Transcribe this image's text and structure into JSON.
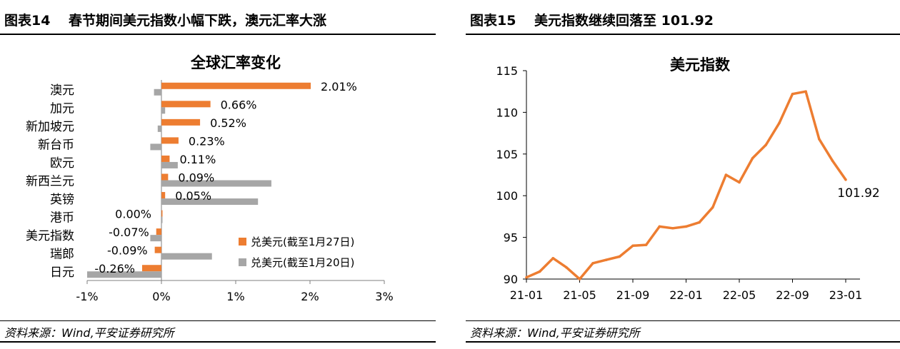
{
  "colors": {
    "orange": "#ED7D31",
    "gray": "#A6A6A6",
    "axis": "#7f7f7f"
  },
  "left": {
    "fig_title": "图表14　 春节期间美元指数小幅下跌，澳元汇率大涨",
    "source": "资料来源：Wind,平安证券研究所"
  },
  "right": {
    "fig_title": "图表15　 美元指数继续回落至 101.92",
    "source": "资料来源：Wind,平安证券研究所"
  },
  "chart_data": [
    {
      "type": "bar",
      "orientation": "horizontal",
      "title": "全球汇率变化",
      "categories": [
        "澳元",
        "加元",
        "新加坡元",
        "新台币",
        "欧元",
        "新西兰元",
        "英镑",
        "港币",
        "美元指数",
        "瑞郎",
        "日元"
      ],
      "series": [
        {
          "name": "兑美元(截至1月27日)",
          "values": [
            2.01,
            0.66,
            0.52,
            0.23,
            0.11,
            0.09,
            0.05,
            0.0,
            -0.07,
            -0.09,
            -0.26
          ]
        },
        {
          "name": "兑美元(截至1月20日)",
          "values": [
            -0.1,
            0.05,
            -0.05,
            -0.15,
            0.22,
            1.48,
            1.3,
            0,
            -0.15,
            0.68,
            -1.0
          ]
        }
      ],
      "data_labels": [
        "2.01%",
        "0.66%",
        "0.52%",
        "0.23%",
        "0.11%",
        "0.09%",
        "0.05%",
        "0.00%",
        "-0.07%",
        "-0.09%",
        "-0.26%"
      ],
      "xlim": [
        -1,
        3
      ],
      "xticks": [
        -1,
        0,
        1,
        2,
        3
      ],
      "xtick_labels": [
        "-1%",
        "0%",
        "1%",
        "2%",
        "3%"
      ],
      "legend": "bottom-right",
      "grid": false
    },
    {
      "type": "line",
      "title": "美元指数",
      "series": [
        {
          "name": "",
          "x": [
            "21-01",
            "21-02",
            "21-03",
            "21-04",
            "21-05",
            "21-06",
            "21-07",
            "21-08",
            "21-09",
            "21-10",
            "21-11",
            "21-12",
            "22-01",
            "22-02",
            "22-03",
            "22-04",
            "22-05",
            "22-06",
            "22-07",
            "22-08",
            "22-09",
            "22-10",
            "22-11",
            "22-12",
            "23-01"
          ],
          "values": [
            90.2,
            90.9,
            92.5,
            91.4,
            90.0,
            91.9,
            92.3,
            92.7,
            94.0,
            94.1,
            96.3,
            96.1,
            96.3,
            96.8,
            98.6,
            102.5,
            101.6,
            104.5,
            106.1,
            108.7,
            112.2,
            112.5,
            106.8,
            104.2,
            101.92
          ]
        }
      ],
      "ylim": [
        90,
        115
      ],
      "yticks": [
        90,
        95,
        100,
        105,
        110,
        115
      ],
      "xtick_labels": [
        "21-01",
        "21-05",
        "21-09",
        "22-01",
        "22-05",
        "22-09",
        "23-01"
      ],
      "end_label": "101.92",
      "grid": false
    }
  ]
}
